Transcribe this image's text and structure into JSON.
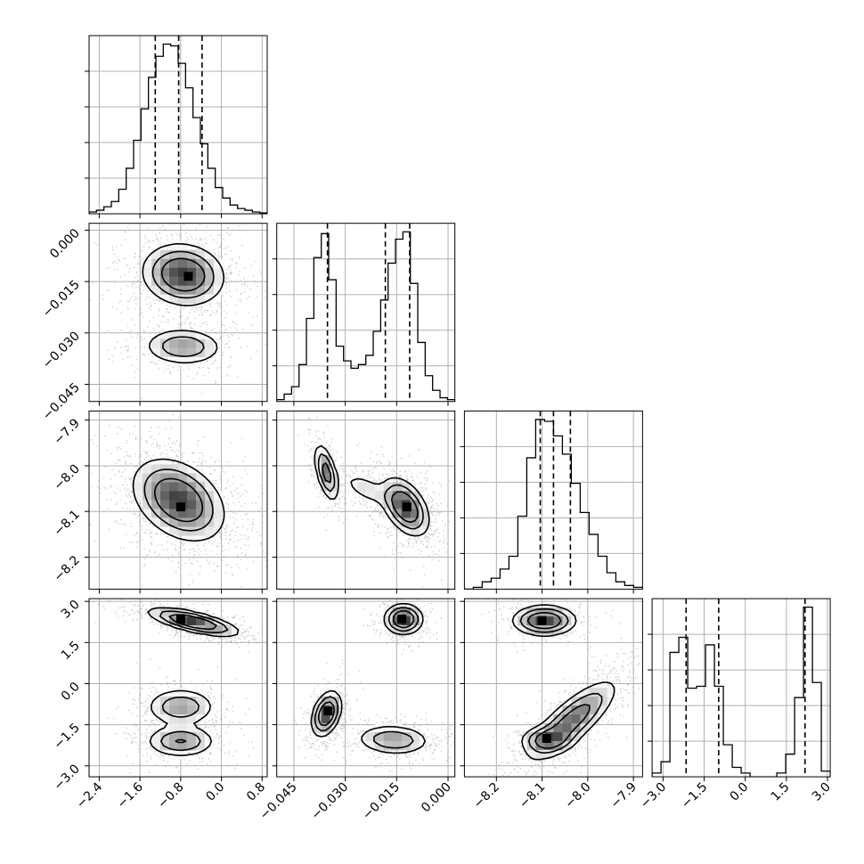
{
  "chart_data": {
    "type": "corner",
    "parameters": [
      {
        "range": [
          -2.6,
          0.9
        ],
        "ticks": [
          -2.4,
          -1.6,
          -0.8,
          0.0,
          0.8
        ],
        "tick_labels": [
          "−2.4",
          "−1.6",
          "−0.8",
          "0.0",
          "0.8"
        ],
        "quantiles": [
          -1.3,
          -0.84,
          -0.38
        ],
        "hist": [
          0.01,
          0.02,
          0.04,
          0.07,
          0.14,
          0.26,
          0.42,
          0.6,
          0.78,
          0.9,
          0.97,
          0.96,
          0.86,
          0.72,
          0.55,
          0.4,
          0.26,
          0.15,
          0.09,
          0.05,
          0.03,
          0.02,
          0.01,
          0.005
        ]
      },
      {
        "range": [
          -0.05,
          0.002
        ],
        "ticks": [
          -0.045,
          -0.03,
          -0.015,
          0.0
        ],
        "tick_labels": [
          "−0.045",
          "−0.030",
          "−0.015",
          "0.000"
        ],
        "quantiles": [
          -0.0352,
          -0.0183,
          -0.0112
        ],
        "hist": [
          0.01,
          0.04,
          0.08,
          0.2,
          0.45,
          0.78,
          0.91,
          0.66,
          0.3,
          0.22,
          0.18,
          0.2,
          0.25,
          0.38,
          0.55,
          0.75,
          0.88,
          0.92,
          0.64,
          0.32,
          0.14,
          0.06,
          0.02,
          0.01
        ]
      },
      {
        "range": [
          -8.27,
          -7.88
        ],
        "ticks": [
          -8.2,
          -8.1,
          -8.0,
          -7.9
        ],
        "tick_labels": [
          "−8.2",
          "−8.1",
          "−8.0",
          "−7.9"
        ],
        "quantiles": [
          -8.104,
          -8.075,
          -8.038
        ],
        "hist": [
          0.0,
          0.01,
          0.04,
          0.06,
          0.11,
          0.18,
          0.4,
          0.72,
          0.93,
          0.92,
          0.84,
          0.74,
          0.58,
          0.42,
          0.3,
          0.18,
          0.09,
          0.04,
          0.02,
          0.01
        ]
      },
      {
        "range": [
          -3.4,
          3.1
        ],
        "ticks": [
          -3.0,
          -1.5,
          0.0,
          1.5,
          3.0
        ],
        "tick_labels": [
          "−3.0",
          "−1.5",
          "0.0",
          "1.5",
          "3.0"
        ],
        "quantiles": [
          -2.16,
          -0.97,
          2.18
        ],
        "hist": [
          0.02,
          0.08,
          0.66,
          0.74,
          0.47,
          0.48,
          0.7,
          0.48,
          0.17,
          0.05,
          0.02,
          0.0,
          0.0,
          0.0,
          0.02,
          0.12,
          0.42,
          0.9,
          0.5,
          0.03
        ]
      }
    ],
    "pairs": [
      {
        "x": 0,
        "y": 1,
        "blobs": [
          {
            "cx": -0.75,
            "cy": -0.013,
            "sx": 0.4,
            "sy": 0.0045,
            "rho": -0.1,
            "w": 1.0
          },
          {
            "cx": -0.75,
            "cy": -0.034,
            "sx": 0.4,
            "sy": 0.0028,
            "rho": -0.05,
            "w": 0.55
          }
        ],
        "peaks": [
          {
            "x": -0.65,
            "y": -0.0135
          }
        ]
      },
      {
        "x": 0,
        "y": 2,
        "blobs": [
          {
            "cx": -0.84,
            "cy": -8.075,
            "sx": 0.45,
            "sy": 0.045,
            "rho": -0.35,
            "w": 1.0
          }
        ],
        "peaks": [
          {
            "x": -0.8,
            "y": -8.09
          }
        ]
      },
      {
        "x": 1,
        "y": 2,
        "blobs": [
          {
            "cx": -0.0355,
            "cy": -8.015,
            "sx": 0.0018,
            "sy": 0.032,
            "rho": -0.55,
            "w": 0.75
          },
          {
            "cx": -0.0125,
            "cy": -8.09,
            "sx": 0.0035,
            "sy": 0.032,
            "rho": -0.45,
            "w": 1.0
          },
          {
            "cx": -0.024,
            "cy": -8.05,
            "sx": 0.004,
            "sy": 0.02,
            "rho": -0.6,
            "w": 0.25
          }
        ],
        "peaks": [
          {
            "x": -0.012,
            "y": -8.09
          }
        ]
      },
      {
        "x": 0,
        "y": 3,
        "blobs": [
          {
            "cx": -0.55,
            "cy": 2.25,
            "sx": 0.45,
            "sy": 0.26,
            "rho": -0.7,
            "w": 1.0
          },
          {
            "cx": -0.8,
            "cy": -0.85,
            "sx": 0.35,
            "sy": 0.35,
            "rho": 0.0,
            "w": 0.55
          },
          {
            "cx": -0.8,
            "cy": -2.1,
            "sx": 0.35,
            "sy": 0.3,
            "rho": 0.0,
            "w": 0.6
          }
        ],
        "peaks": [
          {
            "x": -0.8,
            "y": 2.35
          }
        ]
      },
      {
        "x": 1,
        "y": 3,
        "blobs": [
          {
            "cx": -0.013,
            "cy": 2.35,
            "sx": 0.0028,
            "sy": 0.28,
            "rho": 0.0,
            "w": 1.0
          },
          {
            "cx": -0.0355,
            "cy": -1.1,
            "sx": 0.0022,
            "sy": 0.42,
            "rho": 0.35,
            "w": 0.95
          },
          {
            "cx": -0.016,
            "cy": -2.05,
            "sx": 0.0055,
            "sy": 0.28,
            "rho": -0.1,
            "w": 0.55
          }
        ],
        "peaks": [
          {
            "x": -0.0135,
            "y": 2.35
          },
          {
            "x": -0.035,
            "y": -1.0
          }
        ]
      },
      {
        "x": 2,
        "y": 3,
        "blobs": [
          {
            "cx": -8.095,
            "cy": 2.3,
            "sx": 0.035,
            "sy": 0.28,
            "rho": 0.0,
            "w": 1.0
          },
          {
            "cx": -8.035,
            "cy": -1.35,
            "sx": 0.05,
            "sy": 0.75,
            "rho": 0.8,
            "w": 0.8
          },
          {
            "cx": -8.09,
            "cy": -2.05,
            "sx": 0.03,
            "sy": 0.25,
            "rho": 0.0,
            "w": 0.55
          }
        ],
        "peaks": [
          {
            "x": -8.1,
            "y": 2.3
          },
          {
            "x": -8.09,
            "y": -2.0
          }
        ]
      }
    ],
    "grid": true
  }
}
